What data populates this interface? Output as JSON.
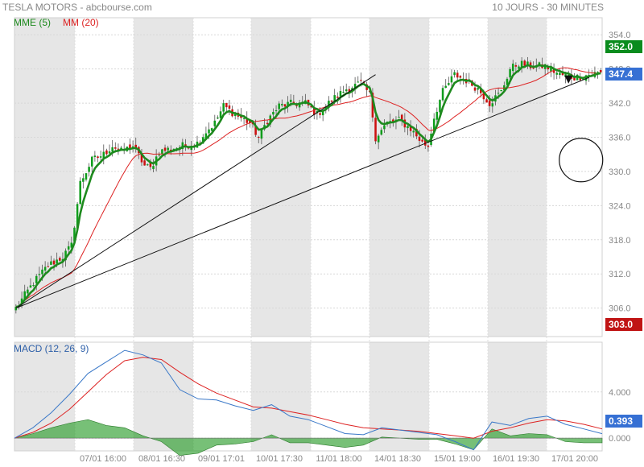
{
  "header": {
    "title": "TESLA MOTORS - abcbourse.com",
    "period": "10 JOURS - 30 MINUTES"
  },
  "legend": {
    "mme": "MME (5)",
    "mm": "MM (20)",
    "macd": "MACD (12, 26, 9)"
  },
  "badges": {
    "high": "352.0",
    "last": "347.4",
    "low": "303.0",
    "macd_last": "0.393"
  },
  "colors": {
    "up": "#0f9d1c",
    "down": "#cc1111",
    "mme": "#1e8a1e",
    "mm": "#dd2222",
    "macd": "#3a78c8",
    "signal": "#dd2222",
    "histogram": "#2e9e2e",
    "shade": "#e6e6e6",
    "badge_green": "#0a8c1e",
    "badge_blue": "#3670d4",
    "badge_red": "#c01414"
  },
  "chart_data": [
    {
      "type": "candlestick",
      "title": "TESLA MOTORS",
      "ylim": [
        301,
        357
      ],
      "y_ticks": [
        "354.0",
        "348.0",
        "342.0",
        "336.0",
        "330.0",
        "324.0",
        "318.0",
        "312.0",
        "306.0"
      ],
      "x_ticks": [
        "07/01 16:00",
        "08/01 16:30",
        "09/01 17:01",
        "10/01 17:30",
        "11/01 18:00",
        "14/01 18:30",
        "15/01 19:00",
        "16/01 19:30",
        "17/01 20:00"
      ],
      "close_anchors": [
        [
          0,
          306.0
        ],
        [
          6,
          310.5
        ],
        [
          11,
          313.5
        ],
        [
          16,
          315.0
        ],
        [
          19,
          317.0
        ],
        [
          22,
          328.0
        ],
        [
          26,
          332.0
        ],
        [
          30,
          333.0
        ],
        [
          33,
          334.5
        ],
        [
          36,
          333.5
        ],
        [
          40,
          334.5
        ],
        [
          44,
          331.0
        ],
        [
          46,
          330.5
        ],
        [
          49,
          333.5
        ],
        [
          53,
          334.0
        ],
        [
          57,
          334.5
        ],
        [
          62,
          335.0
        ],
        [
          65,
          337.0
        ],
        [
          68,
          338.5
        ],
        [
          71,
          341.5
        ],
        [
          75,
          340.0
        ],
        [
          80,
          338.5
        ],
        [
          83,
          336.0
        ],
        [
          86,
          339.0
        ],
        [
          90,
          341.5
        ],
        [
          95,
          342.0
        ],
        [
          99,
          342.0
        ],
        [
          103,
          340.0
        ],
        [
          108,
          342.5
        ],
        [
          113,
          344.5
        ],
        [
          118,
          345.5
        ],
        [
          121,
          343.5
        ],
        [
          123,
          336.0
        ],
        [
          127,
          338.5
        ],
        [
          131,
          339.0
        ],
        [
          135,
          337.5
        ],
        [
          139,
          335.0
        ],
        [
          141,
          334.5
        ],
        [
          143,
          339.5
        ],
        [
          146,
          344.0
        ],
        [
          150,
          347.0
        ],
        [
          154,
          346.0
        ],
        [
          158,
          344.5
        ],
        [
          162,
          342.0
        ],
        [
          166,
          344.0
        ],
        [
          169,
          348.0
        ],
        [
          172,
          349.0
        ],
        [
          176,
          348.5
        ],
        [
          181,
          348.5
        ],
        [
          186,
          347.0
        ],
        [
          191,
          346.5
        ],
        [
          196,
          347.0
        ],
        [
          200,
          347.4
        ]
      ],
      "series": [
        {
          "name": "MME (5)",
          "values": "exponential moving average (5 periods) of the candle closes"
        },
        {
          "name": "MM (20)",
          "values": "simple moving average (20 periods) of the candle closes"
        }
      ],
      "trendlines": [
        [
          [
            0,
            306.0
          ],
          [
            123,
            347.0
          ]
        ],
        [
          [
            0,
            306.0
          ],
          [
            196,
            346.5
          ]
        ]
      ],
      "annotations": [
        {
          "type": "circle",
          "x": 193,
          "y": 332.0,
          "label": ""
        },
        {
          "type": "arrow-down",
          "x": 189,
          "y": 346.0,
          "label": ""
        }
      ]
    },
    {
      "type": "line",
      "title": "MACD (12, 26, 9)",
      "ylim": [
        -1.1,
        8.3
      ],
      "y_ticks": [
        "4.000",
        "0.000"
      ],
      "series": [
        {
          "name": "MACD",
          "values": [
            0,
            0.9,
            2.2,
            3.8,
            5.6,
            6.6,
            7.6,
            7.2,
            6.5,
            4.2,
            3.4,
            3.3,
            2.8,
            2.4,
            2.9,
            1.9,
            1.6,
            1.0,
            0.4,
            0.3,
            0.9,
            0.7,
            0.5,
            0.3,
            -0.3,
            -1.0,
            1.4,
            1.1,
            1.7,
            1.9,
            1.2,
            0.8,
            0.393
          ]
        },
        {
          "name": "Signal",
          "values": [
            0,
            0.5,
            1.3,
            2.5,
            4.0,
            5.5,
            6.7,
            7.0,
            6.8,
            5.7,
            4.7,
            3.9,
            3.3,
            2.7,
            2.6,
            2.3,
            2.0,
            1.6,
            1.2,
            0.9,
            0.8,
            0.7,
            0.6,
            0.4,
            0.2,
            0.0,
            0.6,
            0.9,
            1.3,
            1.6,
            1.5,
            1.2,
            0.8
          ]
        },
        {
          "name": "Histogram",
          "values": [
            0,
            0.4,
            0.9,
            1.3,
            1.6,
            1.1,
            0.9,
            0.2,
            -0.3,
            -1.5,
            -1.3,
            -0.6,
            -0.5,
            -0.3,
            0.3,
            -0.4,
            -0.4,
            -0.6,
            -0.8,
            -0.6,
            0.1,
            0.0,
            -0.1,
            -0.1,
            -0.5,
            -1.0,
            0.8,
            0.2,
            0.4,
            0.3,
            -0.3,
            -0.4,
            -0.4
          ]
        }
      ]
    }
  ]
}
